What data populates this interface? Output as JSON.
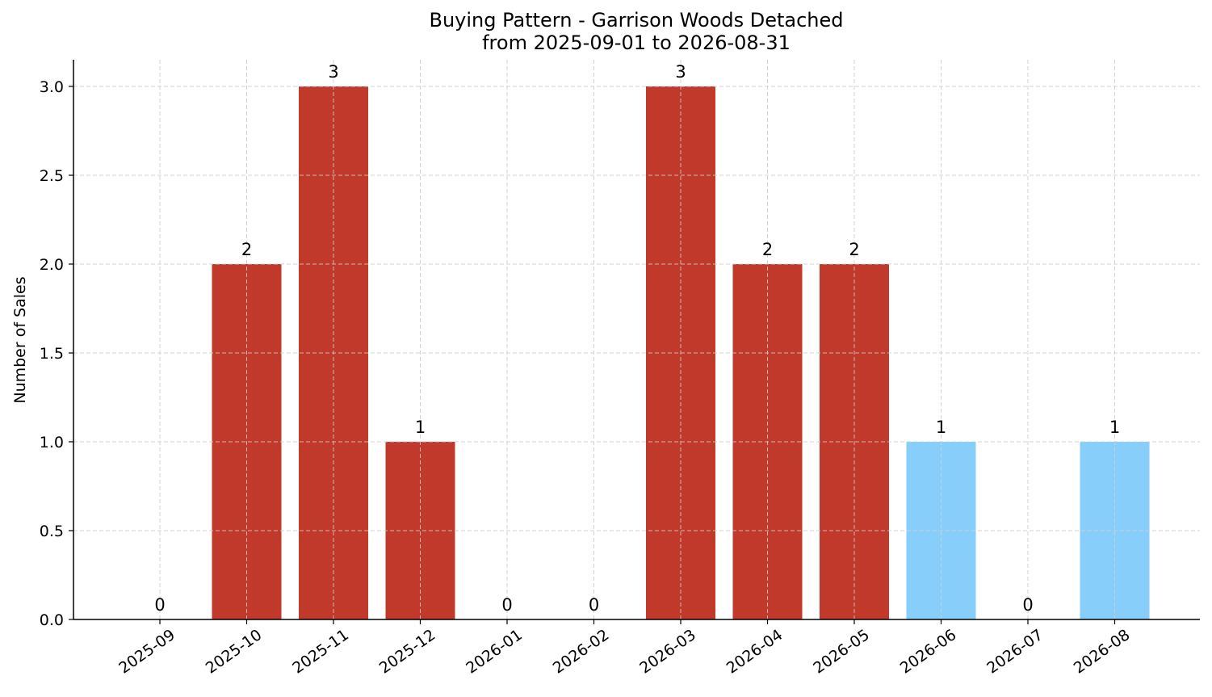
{
  "chart_data": {
    "type": "bar",
    "title": "Buying Pattern - Garrison Woods Detached",
    "subtitle": "from 2025-09-01 to 2026-08-31",
    "xlabel": "",
    "ylabel": "Number of Sales",
    "categories": [
      "2025-09",
      "2025-10",
      "2025-11",
      "2025-12",
      "2026-01",
      "2026-02",
      "2026-03",
      "2026-04",
      "2026-05",
      "2026-06",
      "2026-07",
      "2026-08"
    ],
    "values": [
      0,
      2,
      3,
      1,
      0,
      0,
      3,
      2,
      2,
      1,
      0,
      1
    ],
    "bar_colors": [
      "#c0392b",
      "#c0392b",
      "#c0392b",
      "#c0392b",
      "#c0392b",
      "#c0392b",
      "#c0392b",
      "#c0392b",
      "#c0392b",
      "#87cefa",
      "#c0392b",
      "#87cefa"
    ],
    "data_labels": [
      "0",
      "2",
      "3",
      "1",
      "0",
      "0",
      "3",
      "2",
      "2",
      "1",
      "0",
      "1"
    ],
    "ylim": [
      0,
      3.15
    ],
    "yticks": [
      0.0,
      0.5,
      1.0,
      1.5,
      2.0,
      2.5,
      3.0
    ],
    "ytick_labels": [
      "0.0",
      "0.5",
      "1.0",
      "1.5",
      "2.0",
      "2.5",
      "3.0"
    ],
    "grid": true,
    "legend": "none"
  }
}
